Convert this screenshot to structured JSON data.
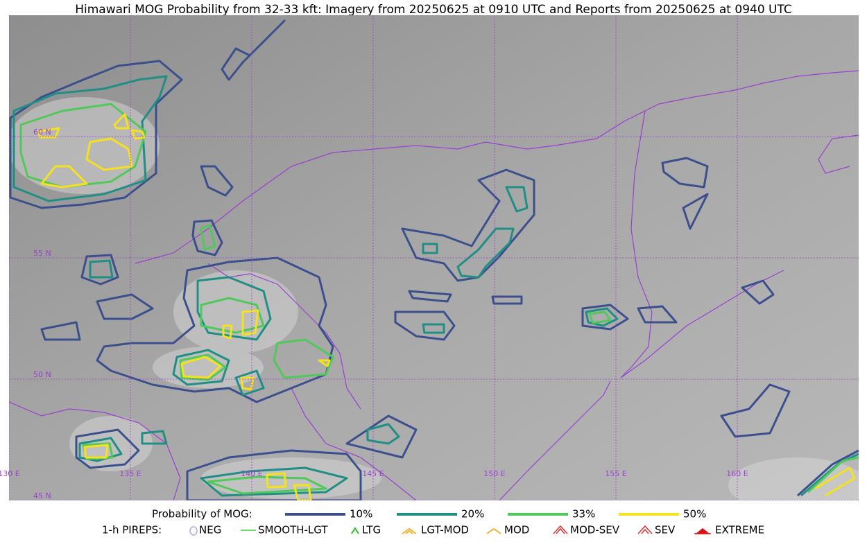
{
  "title": "Himawari MOG Probability from 32-33 kft: Imagery from 20250625 at 0910 UTC and Reports from 20250625 at 0940 UTC",
  "map": {
    "lat_labels": [
      "60 N",
      "55 N",
      "50 N",
      "45 N"
    ],
    "lon_labels": [
      "130 E",
      "135 E",
      "140 E",
      "145 E",
      "150 E",
      "155 E",
      "160 E"
    ]
  },
  "legend": {
    "mog_title": "Probability of MOG:",
    "mog_items": [
      {
        "label": "10%",
        "color": "#3b4f8c"
      },
      {
        "label": "20%",
        "color": "#1f8f85"
      },
      {
        "label": "33%",
        "color": "#50c85a"
      },
      {
        "label": "50%",
        "color": "#f5e11e"
      }
    ],
    "pirep_title": "1-h PIREPS:",
    "pirep_items": [
      {
        "label": "NEG",
        "color": "#b0a8f0"
      },
      {
        "label": "SMOOTH-LGT",
        "color": "#33dd33"
      },
      {
        "label": "LTG",
        "color": "#22cc22"
      },
      {
        "label": "LGT-MOD",
        "color": "#f0b020"
      },
      {
        "label": "MOD",
        "color": "#f0b020"
      },
      {
        "label": "MOD-SEV",
        "color": "#e03030"
      },
      {
        "label": "SEV",
        "color": "#e03030"
      },
      {
        "label": "EXTREME",
        "color": "#e01010"
      }
    ]
  }
}
